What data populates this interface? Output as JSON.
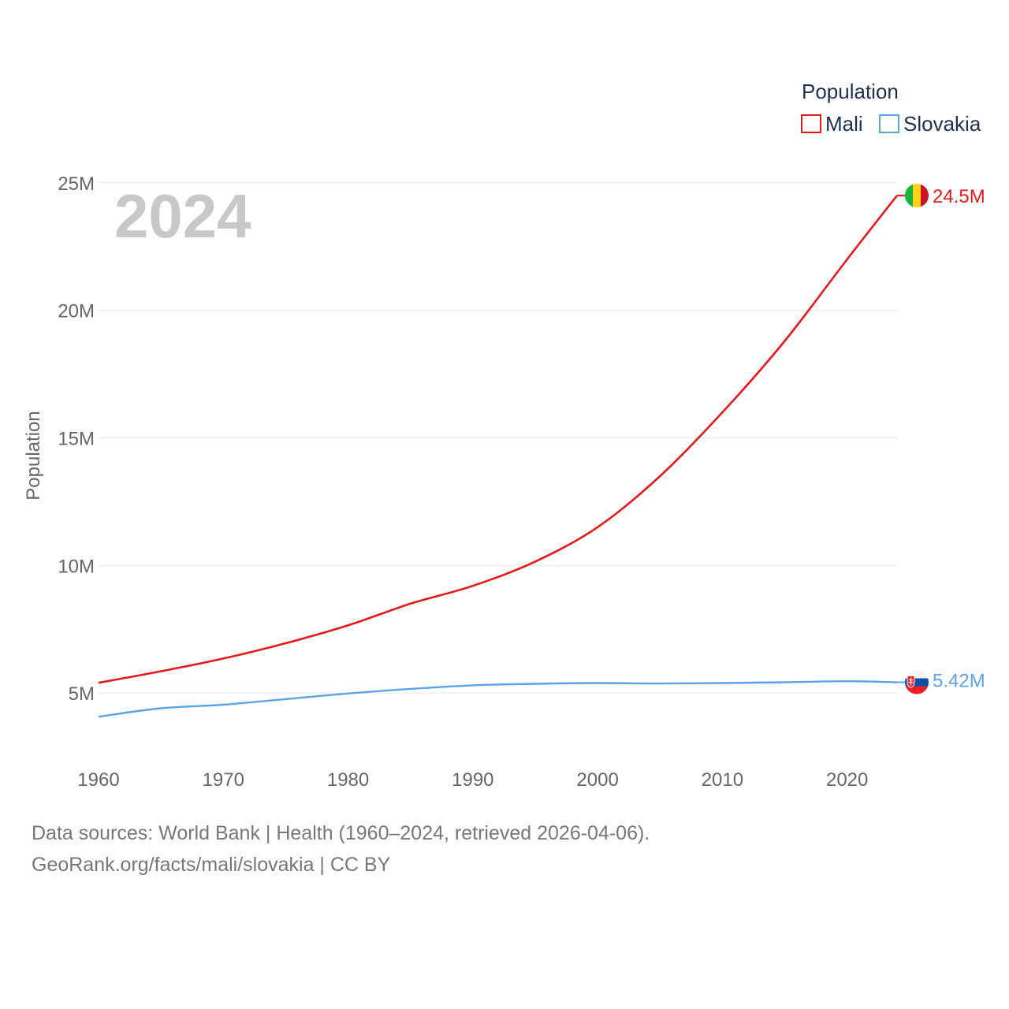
{
  "chart_data": {
    "type": "line",
    "highlight_year": "2024",
    "ylabel": "Population",
    "xlim": [
      1960,
      2024
    ],
    "ylim": [
      2500000,
      27500000
    ],
    "x_ticks": [
      1960,
      1970,
      1980,
      1990,
      2000,
      2010,
      2020
    ],
    "y_ticks": [
      5000000,
      10000000,
      15000000,
      20000000,
      25000000
    ],
    "y_tick_labels": [
      "5M",
      "10M",
      "15M",
      "20M",
      "25M"
    ],
    "legend": {
      "title": "Population",
      "position": "top-right"
    },
    "x": [
      1960,
      1965,
      1970,
      1975,
      1980,
      1985,
      1990,
      1995,
      2000,
      2005,
      2010,
      2015,
      2020,
      2024
    ],
    "series": [
      {
        "name": "Mali",
        "color": "#e31a1c",
        "end_label": "24.5M",
        "flag": "mali-flag-icon",
        "values": [
          5400000,
          5850000,
          6350000,
          6950000,
          7650000,
          8500000,
          9200000,
          10150000,
          11500000,
          13500000,
          16000000,
          18800000,
          22000000,
          24500000
        ]
      },
      {
        "name": "Slovakia",
        "color": "#5aa4e6",
        "end_label": "5.42M",
        "flag": "slovakia-flag-icon",
        "values": [
          4070000,
          4400000,
          4540000,
          4760000,
          4980000,
          5160000,
          5300000,
          5360000,
          5390000,
          5370000,
          5390000,
          5420000,
          5460000,
          5420000
        ]
      }
    ]
  },
  "source": {
    "line1": "Data sources: World Bank | Health (1960–2024, retrieved 2026-04-06).",
    "line2": "GeoRank.org/facts/mali/slovakia | CC BY"
  }
}
